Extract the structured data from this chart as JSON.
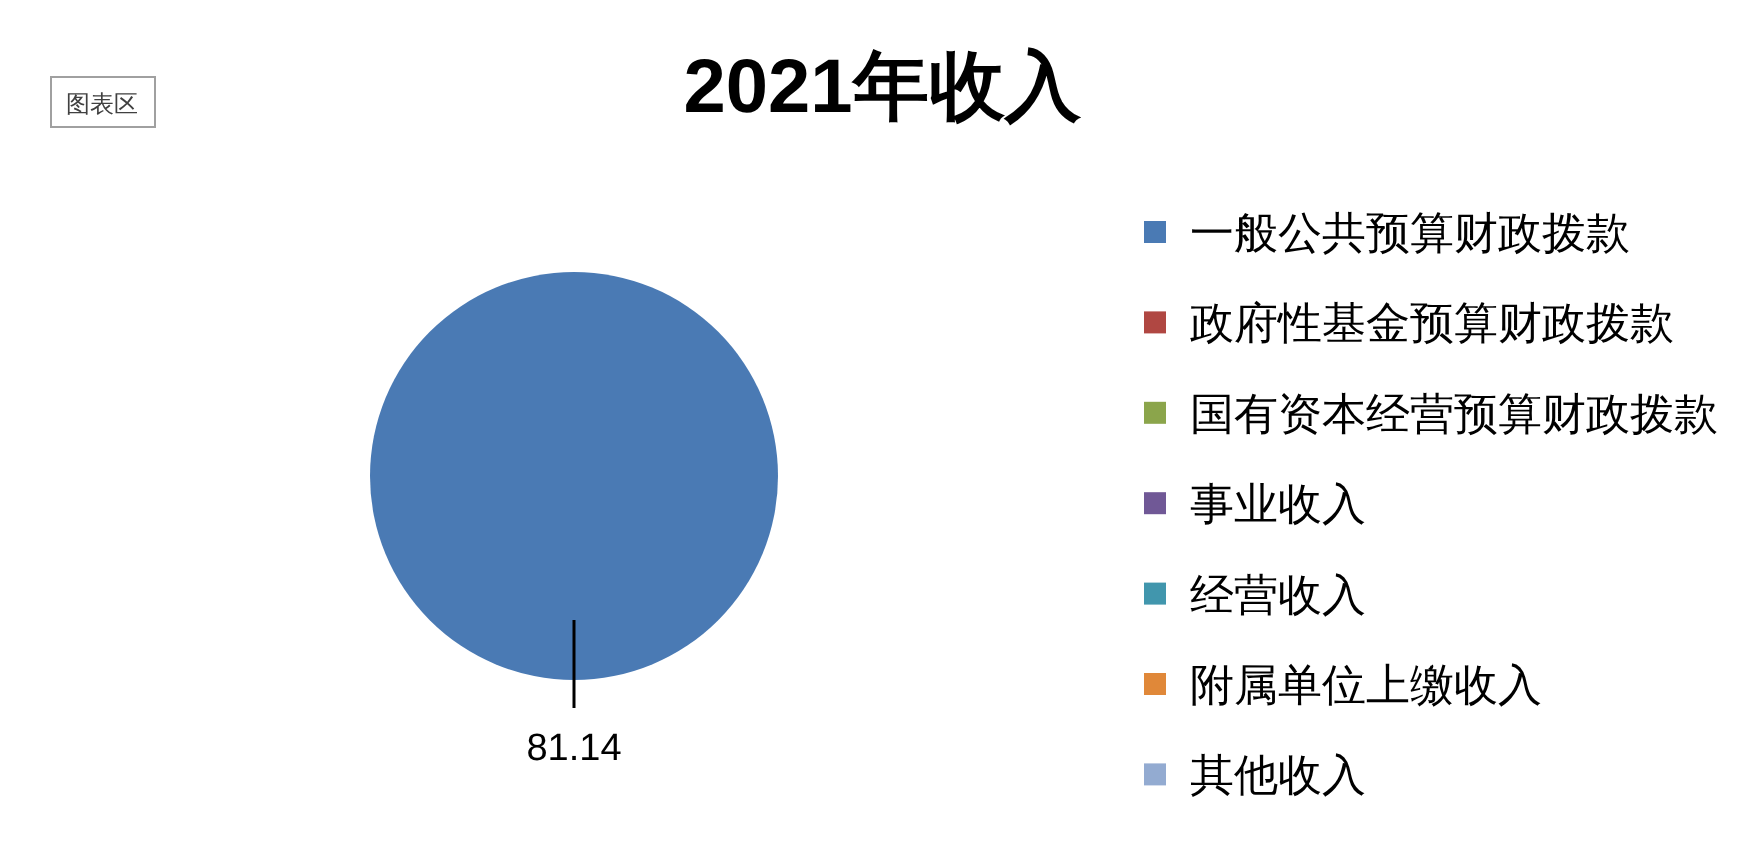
{
  "chart_data": {
    "type": "pie",
    "title": "2021年收入",
    "categories": [
      "一般公共预算财政拨款",
      "政府性基金预算财政拨款",
      "国有资本经营预算财政拨款",
      "事业收入",
      "经营收入",
      "附属单位上缴收入",
      "其他收入"
    ],
    "values": [
      81.14,
      0,
      0,
      0,
      0,
      0,
      0
    ],
    "colors": [
      "#4a7ab4",
      "#b04742",
      "#8ba54b",
      "#705896",
      "#4196ad",
      "#e08839",
      "#93abd1"
    ],
    "value_labels": [
      "81.14",
      null,
      null,
      null,
      null,
      null,
      null
    ],
    "legend": "right",
    "annotations": [
      "图表区"
    ]
  }
}
